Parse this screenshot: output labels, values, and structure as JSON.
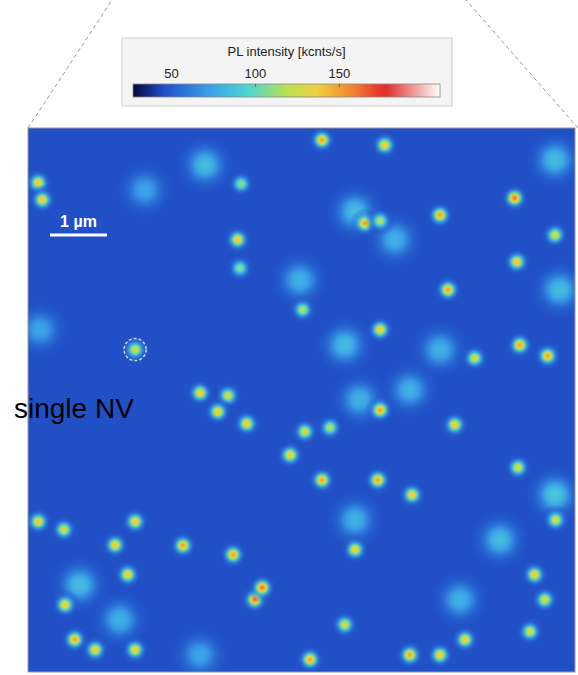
{
  "chart_data": {
    "type": "scatter",
    "title": "PL intensity [kcnts/s]",
    "xlim": [
      0,
      9.6
    ],
    "ylim": [
      0,
      9.55
    ],
    "tick_labels": false,
    "background": 45,
    "colorbar": {
      "range": [
        27,
        210
      ],
      "ticks": [
        50,
        100,
        150
      ]
    },
    "scale_bar": {
      "length": 1,
      "label": "1 µm"
    },
    "annotation": {
      "text": "single NV",
      "x": 1.88,
      "y": 3.89
    },
    "spots": [
      {
        "x": 5.16,
        "y": 0.21,
        "peak": 150
      },
      {
        "x": 6.26,
        "y": 0.3,
        "peak": 140
      },
      {
        "x": 0.18,
        "y": 0.96,
        "peak": 140
      },
      {
        "x": 0.25,
        "y": 1.26,
        "peak": 140
      },
      {
        "x": 3.74,
        "y": 0.98,
        "peak": 110
      },
      {
        "x": 8.54,
        "y": 1.23,
        "peak": 160
      },
      {
        "x": 7.23,
        "y": 1.53,
        "peak": 150
      },
      {
        "x": 3.68,
        "y": 1.96,
        "peak": 140
      },
      {
        "x": 9.25,
        "y": 1.88,
        "peak": 130
      },
      {
        "x": 5.91,
        "y": 1.67,
        "peak": 150
      },
      {
        "x": 6.18,
        "y": 1.63,
        "peak": 120
      },
      {
        "x": 8.58,
        "y": 2.35,
        "peak": 140
      },
      {
        "x": 7.37,
        "y": 2.84,
        "peak": 150
      },
      {
        "x": 3.72,
        "y": 2.46,
        "peak": 110
      },
      {
        "x": 1.88,
        "y": 3.89,
        "peak": 130
      },
      {
        "x": 8.63,
        "y": 3.81,
        "peak": 150
      },
      {
        "x": 9.12,
        "y": 4.0,
        "peak": 150
      },
      {
        "x": 6.18,
        "y": 3.54,
        "peak": 140
      },
      {
        "x": 7.84,
        "y": 4.04,
        "peak": 130
      },
      {
        "x": 3.02,
        "y": 4.65,
        "peak": 140
      },
      {
        "x": 3.51,
        "y": 4.7,
        "peak": 130
      },
      {
        "x": 3.33,
        "y": 4.98,
        "peak": 140
      },
      {
        "x": 3.84,
        "y": 5.19,
        "peak": 140
      },
      {
        "x": 6.18,
        "y": 4.95,
        "peak": 150
      },
      {
        "x": 4.86,
        "y": 5.33,
        "peak": 130
      },
      {
        "x": 7.49,
        "y": 5.21,
        "peak": 140
      },
      {
        "x": 5.3,
        "y": 5.26,
        "peak": 120
      },
      {
        "x": 4.6,
        "y": 5.74,
        "peak": 140
      },
      {
        "x": 5.16,
        "y": 6.18,
        "peak": 150
      },
      {
        "x": 6.14,
        "y": 6.18,
        "peak": 150
      },
      {
        "x": 6.74,
        "y": 6.44,
        "peak": 140
      },
      {
        "x": 8.6,
        "y": 5.96,
        "peak": 130
      },
      {
        "x": 0.18,
        "y": 6.91,
        "peak": 140
      },
      {
        "x": 0.63,
        "y": 7.05,
        "peak": 130
      },
      {
        "x": 1.88,
        "y": 6.91,
        "peak": 140
      },
      {
        "x": 2.72,
        "y": 7.33,
        "peak": 150
      },
      {
        "x": 1.53,
        "y": 7.32,
        "peak": 140
      },
      {
        "x": 3.6,
        "y": 7.49,
        "peak": 150
      },
      {
        "x": 3.98,
        "y": 8.28,
        "peak": 160
      },
      {
        "x": 4.11,
        "y": 8.07,
        "peak": 160
      },
      {
        "x": 5.74,
        "y": 7.4,
        "peak": 140
      },
      {
        "x": 1.75,
        "y": 7.84,
        "peak": 140
      },
      {
        "x": 0.65,
        "y": 8.37,
        "peak": 140
      },
      {
        "x": 8.89,
        "y": 7.84,
        "peak": 140
      },
      {
        "x": 9.07,
        "y": 8.28,
        "peak": 130
      },
      {
        "x": 8.81,
        "y": 8.84,
        "peak": 130
      },
      {
        "x": 0.82,
        "y": 8.98,
        "peak": 150
      },
      {
        "x": 1.18,
        "y": 9.16,
        "peak": 140
      },
      {
        "x": 1.88,
        "y": 9.16,
        "peak": 140
      },
      {
        "x": 4.95,
        "y": 9.33,
        "peak": 150
      },
      {
        "x": 7.67,
        "y": 8.98,
        "peak": 140
      },
      {
        "x": 6.7,
        "y": 9.25,
        "peak": 150
      },
      {
        "x": 7.23,
        "y": 9.25,
        "peak": 140
      },
      {
        "x": 4.82,
        "y": 3.19,
        "peak": 120
      },
      {
        "x": 5.56,
        "y": 8.72,
        "peak": 130
      },
      {
        "x": 9.26,
        "y": 6.88,
        "peak": 130
      }
    ],
    "clusters": [
      {
        "x": 3.11,
        "y": 0.65,
        "peak": 85
      },
      {
        "x": 2.05,
        "y": 1.09,
        "peak": 75
      },
      {
        "x": 9.25,
        "y": 0.56,
        "peak": 85
      },
      {
        "x": 5.74,
        "y": 1.47,
        "peak": 85
      },
      {
        "x": 6.44,
        "y": 1.96,
        "peak": 80
      },
      {
        "x": 4.77,
        "y": 2.67,
        "peak": 80
      },
      {
        "x": 9.33,
        "y": 2.84,
        "peak": 85
      },
      {
        "x": 7.23,
        "y": 3.89,
        "peak": 80
      },
      {
        "x": 5.56,
        "y": 3.81,
        "peak": 85
      },
      {
        "x": 5.82,
        "y": 4.77,
        "peak": 80
      },
      {
        "x": 6.7,
        "y": 4.6,
        "peak": 80
      },
      {
        "x": 9.25,
        "y": 6.44,
        "peak": 90
      },
      {
        "x": 8.28,
        "y": 7.23,
        "peak": 85
      },
      {
        "x": 5.74,
        "y": 6.88,
        "peak": 80
      },
      {
        "x": 0.91,
        "y": 8.02,
        "peak": 85
      },
      {
        "x": 1.61,
        "y": 8.63,
        "peak": 80
      },
      {
        "x": 7.58,
        "y": 8.28,
        "peak": 80
      },
      {
        "x": 3.02,
        "y": 9.25,
        "peak": 75
      },
      {
        "x": 0.21,
        "y": 3.54,
        "peak": 75
      }
    ]
  }
}
